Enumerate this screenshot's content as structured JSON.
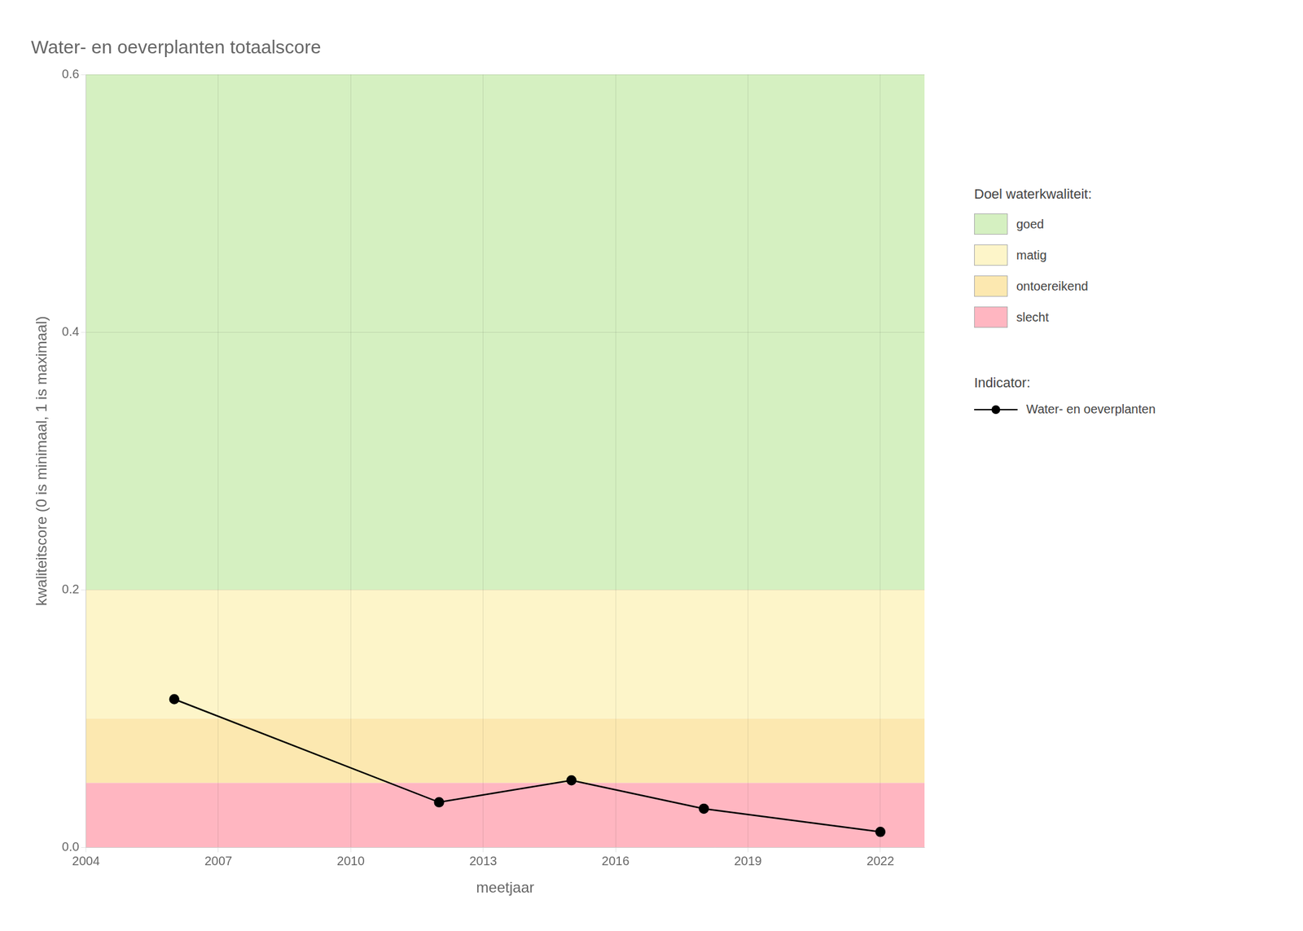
{
  "chart_data": {
    "type": "line",
    "title": "Water- en oeverplanten totaalscore",
    "x_label": "meetjaar",
    "y_label": "kwaliteitscore (0 is minimaal, 1 is maximaal)",
    "x": [
      2006,
      2012,
      2015,
      2018,
      2022
    ],
    "series": [
      {
        "name": "Water- en oeverplanten",
        "color": "#000000",
        "marker": "circle",
        "line_style": "solid",
        "values": [
          0.115,
          0.035,
          0.052,
          0.03,
          0.012
        ]
      }
    ],
    "xlim": [
      2004,
      2023
    ],
    "xticks": [
      2004,
      2007,
      2010,
      2013,
      2016,
      2019,
      2022
    ],
    "ylim": [
      0,
      0.6
    ],
    "yticks": [
      {
        "value": 0,
        "label": "0.0"
      },
      0.2,
      0.4,
      0.6
    ],
    "grid": true,
    "legend": "right",
    "legend_title": "Indicator:",
    "zones_title": "Doel waterkwaliteit:",
    "zones": [
      {
        "label": "goed",
        "color": "#d5f0c1",
        "ymin": 0.2,
        "ymax": 0.6
      },
      {
        "label": "matig",
        "color": "#fdf5c9",
        "ymin": 0.1,
        "ymax": 0.2
      },
      {
        "label": "ontoereikend",
        "color": "#fce8b0",
        "ymin": 0.05,
        "ymax": 0.1
      },
      {
        "label": "slecht",
        "color": "#ffb6c1",
        "ymin": 0.0,
        "ymax": 0.05
      }
    ]
  }
}
